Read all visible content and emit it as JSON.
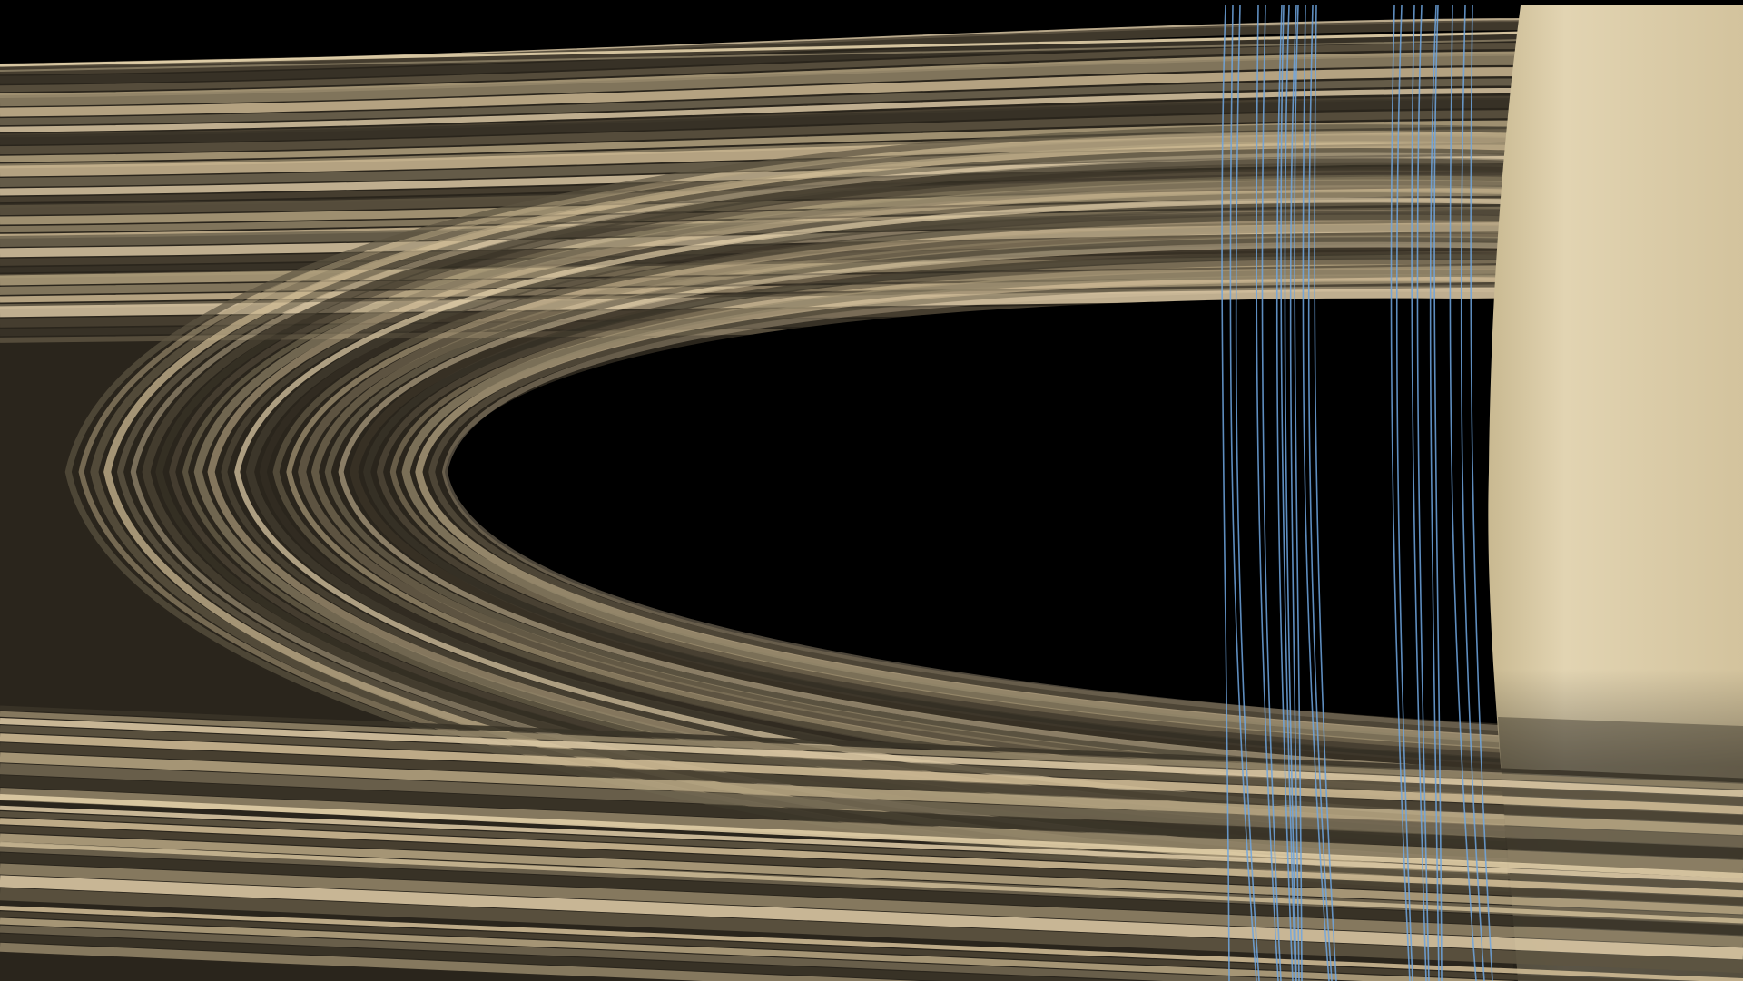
{
  "scene": {
    "subject": "saturn-rings-render",
    "colors": {
      "space": "#000000",
      "ring_light": "#d9c7a3",
      "ring_mid": "#8f8266",
      "ring_dark": "#3a3428",
      "planet": "#d8c9a4",
      "planet_shadow": "#b8a983",
      "field_lines": "#6fa6e0"
    },
    "ring_band_count": 38,
    "field_line_count": 22
  }
}
